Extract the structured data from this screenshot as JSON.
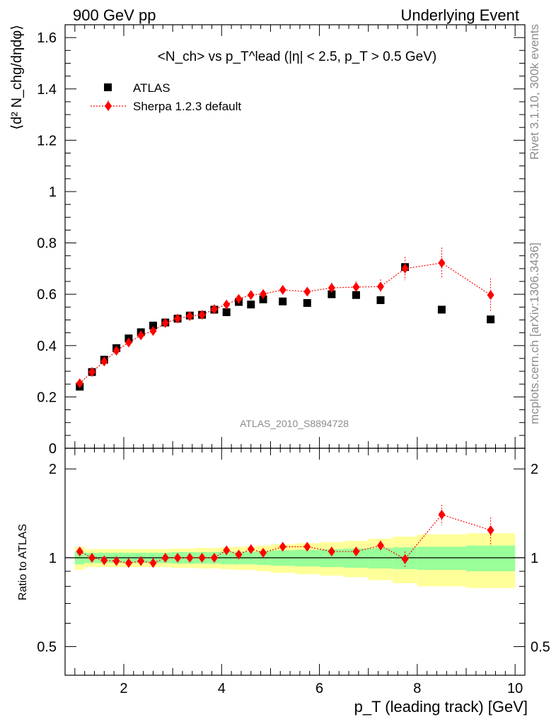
{
  "header": {
    "left": "900 GeV pp",
    "right": "Underlying Event"
  },
  "side": {
    "top": "Rivet 3.1.10,  300k events",
    "bottom": "mcplots.cern.ch [arXiv:1306.3436]"
  },
  "chart_data": [
    {
      "type": "scatter",
      "panel": "main",
      "title": "<N_ch> vs p_T^lead (|η| < 2.5, p_T > 0.5 GeV)",
      "ylabel": "⟨d² N_chg/dηdφ⟩",
      "xlim": [
        0.8,
        10.2
      ],
      "ylim": [
        0,
        1.65
      ],
      "yticks": [
        0,
        0.2,
        0.4,
        0.6,
        0.8,
        1,
        1.2,
        1.4,
        1.6
      ],
      "ytick_labels": [
        "0",
        "0.2",
        "0.4",
        "0.6",
        "0.8",
        "1",
        "1.2",
        "1.4",
        "1.6"
      ],
      "legend_position": "top-left",
      "annotation": "ATLAS_2010_S8894728",
      "series": [
        {
          "name": "ATLAS",
          "marker": "square",
          "color": "#000000",
          "x": [
            1.1,
            1.35,
            1.6,
            1.85,
            2.1,
            2.35,
            2.6,
            2.85,
            3.1,
            3.35,
            3.6,
            3.85,
            4.1,
            4.35,
            4.6,
            4.85,
            5.25,
            5.75,
            6.25,
            6.75,
            7.25,
            7.75,
            8.5,
            9.5
          ],
          "y": [
            0.24,
            0.297,
            0.345,
            0.39,
            0.428,
            0.452,
            0.478,
            0.49,
            0.505,
            0.517,
            0.52,
            0.54,
            0.53,
            0.57,
            0.56,
            0.58,
            0.572,
            0.566,
            0.6,
            0.597,
            0.577,
            0.706,
            0.54,
            0.502
          ]
        },
        {
          "name": "Sherpa 1.2.3 default",
          "marker": "diamond",
          "color": "#ff0000",
          "line": "dotted",
          "x": [
            1.1,
            1.35,
            1.6,
            1.85,
            2.1,
            2.35,
            2.6,
            2.85,
            3.1,
            3.35,
            3.6,
            3.85,
            4.1,
            4.35,
            4.6,
            4.85,
            5.25,
            5.75,
            6.25,
            6.75,
            7.25,
            7.75,
            8.5,
            9.5
          ],
          "y": [
            0.253,
            0.297,
            0.338,
            0.38,
            0.412,
            0.44,
            0.457,
            0.488,
            0.505,
            0.515,
            0.52,
            0.542,
            0.56,
            0.582,
            0.597,
            0.601,
            0.617,
            0.61,
            0.625,
            0.628,
            0.63,
            0.7,
            0.722,
            0.597
          ],
          "yerr": [
            0.008,
            0.007,
            0.007,
            0.007,
            0.008,
            0.008,
            0.008,
            0.008,
            0.008,
            0.008,
            0.009,
            0.009,
            0.01,
            0.01,
            0.012,
            0.013,
            0.015,
            0.017,
            0.02,
            0.022,
            0.028,
            0.045,
            0.06,
            0.065
          ]
        }
      ]
    },
    {
      "type": "scatter",
      "panel": "ratio",
      "ylabel": "Ratio to ATLAS",
      "xlabel": "p_T (leading track) [GeV]",
      "xlim": [
        0.8,
        10.2
      ],
      "ylim": [
        0.4,
        2.35
      ],
      "log_y": true,
      "xticks": [
        2,
        4,
        6,
        8,
        10
      ],
      "xtick_labels": [
        "2",
        "4",
        "6",
        "8",
        "10"
      ],
      "yticks": [
        0.5,
        1,
        2
      ],
      "ytick_labels": [
        "0.5",
        "1",
        "2"
      ],
      "band_edges": [
        1.0,
        1.2,
        1.475,
        1.725,
        1.975,
        2.225,
        2.475,
        2.725,
        2.975,
        3.225,
        3.475,
        3.725,
        3.975,
        4.225,
        4.475,
        4.725,
        5.0,
        5.5,
        6.0,
        6.5,
        7.0,
        7.5,
        8.0,
        9.0,
        10.0
      ],
      "band_inner_half": [
        0.05,
        0.04,
        0.04,
        0.04,
        0.04,
        0.04,
        0.04,
        0.04,
        0.045,
        0.045,
        0.045,
        0.045,
        0.05,
        0.05,
        0.05,
        0.055,
        0.06,
        0.065,
        0.07,
        0.075,
        0.08,
        0.085,
        0.09,
        0.1
      ],
      "band_outer_half": [
        0.09,
        0.07,
        0.07,
        0.07,
        0.07,
        0.07,
        0.07,
        0.07,
        0.075,
        0.075,
        0.08,
        0.08,
        0.085,
        0.09,
        0.09,
        0.1,
        0.11,
        0.12,
        0.13,
        0.14,
        0.16,
        0.18,
        0.2,
        0.21
      ],
      "band_colors": {
        "inner": "#99ff99",
        "outer": "#ffff99"
      },
      "series": [
        {
          "name": "Sherpa 1.2.3 default",
          "marker": "diamond",
          "color": "#ff0000",
          "line": "dotted",
          "x": [
            1.1,
            1.35,
            1.6,
            1.85,
            2.1,
            2.35,
            2.6,
            2.85,
            3.1,
            3.35,
            3.6,
            3.85,
            4.1,
            4.35,
            4.6,
            4.85,
            5.25,
            5.75,
            6.25,
            6.75,
            7.25,
            7.75,
            8.5,
            9.5
          ],
          "y": [
            1.05,
            1.0,
            0.98,
            0.975,
            0.96,
            0.975,
            0.96,
            1.0,
            1.0,
            1.0,
            1.0,
            1.0,
            1.06,
            1.025,
            1.07,
            1.04,
            1.09,
            1.09,
            1.05,
            1.05,
            1.1,
            0.99,
            1.4,
            1.24
          ],
          "yerr": [
            0.01,
            0.01,
            0.01,
            0.01,
            0.01,
            0.01,
            0.01,
            0.01,
            0.01,
            0.01,
            0.01,
            0.01,
            0.015,
            0.015,
            0.02,
            0.02,
            0.02,
            0.025,
            0.03,
            0.035,
            0.045,
            0.06,
            0.11,
            0.13
          ]
        }
      ]
    }
  ]
}
